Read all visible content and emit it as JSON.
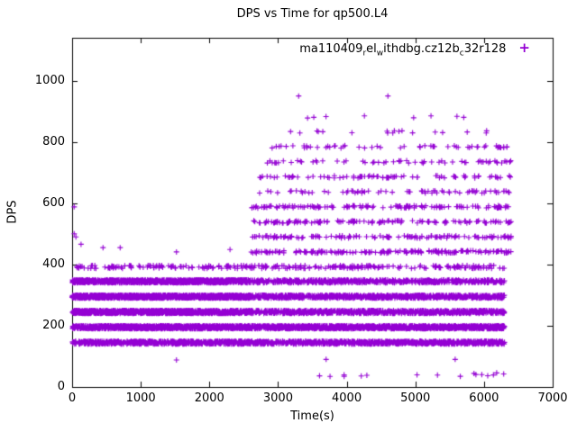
{
  "chart_data": {
    "type": "scatter",
    "title": "DPS vs Time for qp500.L4",
    "xlabel": "Time(s)",
    "ylabel": "DPS",
    "xlim": [
      0,
      7000
    ],
    "ylim": [
      0,
      1140
    ],
    "xticks": [
      0,
      1000,
      2000,
      3000,
      4000,
      5000,
      6000,
      7000
    ],
    "yticks": [
      0,
      200,
      400,
      600,
      800,
      1000
    ],
    "grid": false,
    "legend_position": "top-right-inside",
    "marker": "plus",
    "marker_color": "#9400d3",
    "seed": 42,
    "legend": {
      "segments": [
        {
          "t": "ma110409",
          "sub": false
        },
        {
          "t": "r",
          "sub": true
        },
        {
          "t": "el",
          "sub": false
        },
        {
          "t": "w",
          "sub": true
        },
        {
          "t": "ithdbg.cz12b",
          "sub": false
        },
        {
          "t": "c",
          "sub": true
        },
        {
          "t": "32r128",
          "sub": false
        }
      ],
      "marker_glyph": "+"
    },
    "bands": [
      {
        "t0": 0,
        "t1": 6300,
        "y": 195,
        "jitter": 5,
        "count": 2600
      },
      {
        "t0": 0,
        "t1": 2600,
        "y": 245,
        "jitter": 5,
        "count": 1300
      },
      {
        "t0": 2600,
        "t1": 6300,
        "y": 245,
        "jitter": 5,
        "count": 900
      },
      {
        "t0": 0,
        "t1": 2600,
        "y": 295,
        "jitter": 5,
        "count": 1300
      },
      {
        "t0": 2600,
        "t1": 6300,
        "y": 295,
        "jitter": 5,
        "count": 900
      },
      {
        "t0": 0,
        "t1": 2600,
        "y": 345,
        "jitter": 5,
        "count": 1100
      },
      {
        "t0": 2600,
        "t1": 6300,
        "y": 345,
        "jitter": 5,
        "count": 600
      },
      {
        "t0": 0,
        "t1": 2600,
        "y": 145,
        "jitter": 5,
        "count": 700
      },
      {
        "t0": 2600,
        "t1": 6300,
        "y": 145,
        "jitter": 5,
        "count": 900
      },
      {
        "t0": 0,
        "t1": 6300,
        "y": 392,
        "jitter": 5,
        "count": 280
      },
      {
        "t0": 2600,
        "t1": 6400,
        "y": 441,
        "jitter": 4,
        "count": 170
      },
      {
        "t0": 2600,
        "t1": 6400,
        "y": 490,
        "jitter": 4,
        "count": 130
      },
      {
        "t0": 2600,
        "t1": 6400,
        "y": 539,
        "jitter": 4,
        "count": 130
      },
      {
        "t0": 2600,
        "t1": 6400,
        "y": 588,
        "jitter": 4,
        "count": 130
      },
      {
        "t0": 2700,
        "t1": 6400,
        "y": 637,
        "jitter": 4,
        "count": 70
      },
      {
        "t0": 2700,
        "t1": 6400,
        "y": 686,
        "jitter": 4,
        "count": 80
      },
      {
        "t0": 2800,
        "t1": 6400,
        "y": 735,
        "jitter": 4,
        "count": 60
      },
      {
        "t0": 2900,
        "t1": 6400,
        "y": 784,
        "jitter": 4,
        "count": 55
      },
      {
        "t0": 3100,
        "t1": 6300,
        "y": 833,
        "jitter": 4,
        "count": 18
      },
      {
        "t0": 3300,
        "t1": 6200,
        "y": 882,
        "jitter": 4,
        "count": 8
      },
      {
        "t0": 3200,
        "t1": 6300,
        "y": 40,
        "jitter": 6,
        "count": 16
      }
    ],
    "outliers": [
      [
        30,
        588
      ],
      [
        30,
        500
      ],
      [
        55,
        490
      ],
      [
        130,
        466
      ],
      [
        450,
        455
      ],
      [
        700,
        455
      ],
      [
        1520,
        441
      ],
      [
        1520,
        88
      ],
      [
        2300,
        449
      ],
      [
        3300,
        950
      ],
      [
        4600,
        950
      ],
      [
        3700,
        90
      ],
      [
        5580,
        90
      ]
    ]
  }
}
